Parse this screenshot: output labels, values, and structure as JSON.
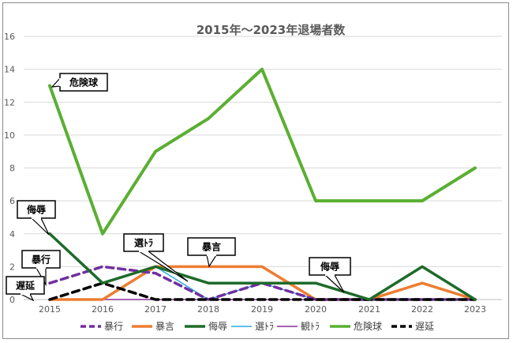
{
  "chart_data": {
    "type": "line",
    "title": "2015年～2023年退場者数",
    "xlabel": "",
    "ylabel": "",
    "x": [
      "2015",
      "2016",
      "2017",
      "2018",
      "2019",
      "2020",
      "2021",
      "2022",
      "2023"
    ],
    "ylim": [
      0,
      16
    ],
    "yticks": [
      0,
      2,
      4,
      6,
      8,
      10,
      12,
      14,
      16
    ],
    "grid": true,
    "legend_position": "bottom",
    "series": [
      {
        "name": "暴行",
        "values": [
          1,
          2,
          1.6,
          0,
          1,
          0,
          0,
          0,
          0
        ],
        "color": "#7030a0",
        "dash": true,
        "width": 3.5
      },
      {
        "name": "暴言",
        "values": [
          0,
          0,
          2,
          2,
          2,
          0,
          0,
          1,
          0
        ],
        "color": "#ed7d31",
        "dash": false,
        "width": 3.5
      },
      {
        "name": "侮辱",
        "values": [
          4,
          1,
          2,
          1,
          1,
          1,
          0,
          2,
          0
        ],
        "color": "#1e6b2a",
        "dash": false,
        "width": 3.5
      },
      {
        "name": "選ﾄﾗ",
        "values": [
          0,
          0,
          2,
          0,
          1,
          0,
          0,
          0,
          0
        ],
        "color": "#2ea8e0",
        "dash": false,
        "width": 1.5
      },
      {
        "name": "観ﾄﾗ",
        "values": [
          0,
          0,
          0,
          0,
          0,
          0,
          0,
          0,
          0
        ],
        "color": "#8a2e9a",
        "dash": false,
        "width": 1.5
      },
      {
        "name": "危険球",
        "values": [
          13,
          4,
          9,
          11,
          14,
          6,
          6,
          6,
          8
        ],
        "color": "#5aaf32",
        "dash": false,
        "width": 4
      },
      {
        "name": "遅延",
        "values": [
          0,
          1,
          0,
          0,
          0,
          0,
          0,
          0,
          0
        ],
        "color": "#000000",
        "dash": true,
        "width": 3.5
      }
    ],
    "annotations": [
      {
        "text": "危険球"
      },
      {
        "text": "侮辱"
      },
      {
        "text": "暴行"
      },
      {
        "text": "遅延"
      },
      {
        "text": "選ﾄﾗ"
      },
      {
        "text": "暴言"
      },
      {
        "text": "侮辱"
      }
    ]
  }
}
